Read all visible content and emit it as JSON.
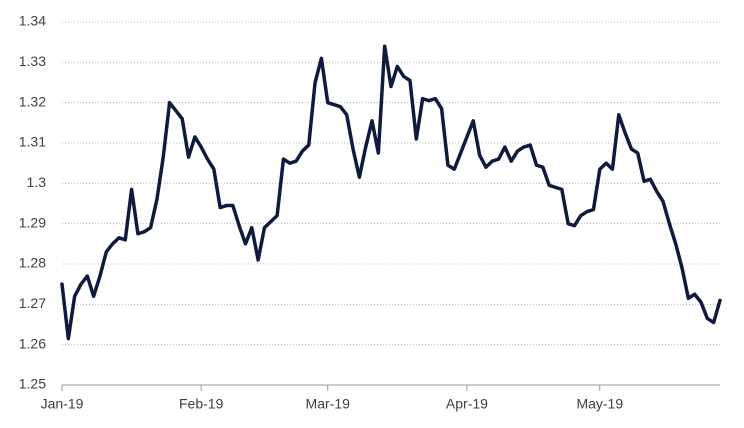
{
  "chart_data": {
    "type": "line",
    "color": "#0f1a3f",
    "grid": true,
    "categories": [
      "Jan-19",
      null,
      null,
      null,
      null,
      null,
      null,
      null,
      null,
      null,
      null,
      null,
      null,
      null,
      null,
      null,
      null,
      null,
      null,
      null,
      null,
      null,
      "Feb-19",
      null,
      null,
      null,
      null,
      null,
      null,
      null,
      null,
      null,
      null,
      null,
      null,
      null,
      null,
      null,
      null,
      null,
      null,
      null,
      "Mar-19",
      null,
      null,
      null,
      null,
      null,
      null,
      null,
      null,
      null,
      null,
      null,
      null,
      null,
      null,
      null,
      null,
      null,
      null,
      null,
      null,
      null,
      "Apr-19",
      null,
      null,
      null,
      null,
      null,
      null,
      null,
      null,
      null,
      null,
      null,
      null,
      null,
      null,
      null,
      null,
      null,
      null,
      null,
      null,
      "May-19",
      null,
      null,
      null,
      null,
      null,
      null,
      null,
      null,
      null,
      null,
      null,
      null,
      null,
      null,
      null,
      null,
      null,
      null,
      null
    ],
    "values": [
      1.275,
      1.2615,
      1.272,
      1.275,
      1.277,
      1.272,
      1.277,
      1.283,
      1.285,
      1.2865,
      1.286,
      1.2985,
      1.2875,
      1.288,
      1.289,
      1.296,
      1.3065,
      1.32,
      1.318,
      1.316,
      1.3065,
      1.3115,
      1.309,
      1.306,
      1.3035,
      1.294,
      1.2945,
      1.2945,
      1.2895,
      1.285,
      1.289,
      1.281,
      1.289,
      1.2905,
      1.292,
      1.306,
      1.305,
      1.3055,
      1.308,
      1.3095,
      1.325,
      1.331,
      1.32,
      1.3195,
      1.319,
      1.317,
      1.3085,
      1.3015,
      1.309,
      1.3155,
      1.3075,
      1.334,
      1.324,
      1.329,
      1.3265,
      1.3255,
      1.311,
      1.321,
      1.3205,
      1.321,
      1.3185,
      1.3045,
      1.3035,
      1.3075,
      1.3115,
      1.3155,
      1.307,
      1.304,
      1.3055,
      1.306,
      1.309,
      1.3055,
      1.308,
      1.309,
      1.3095,
      1.3045,
      1.304,
      1.2995,
      1.299,
      1.2985,
      1.29,
      1.2895,
      1.292,
      1.293,
      1.2935,
      1.3035,
      1.305,
      1.3035,
      1.317,
      1.3125,
      1.3085,
      1.3075,
      1.3005,
      1.301,
      1.298,
      1.2955,
      1.29,
      1.285,
      1.279,
      1.2715,
      1.2725,
      1.2705,
      1.2665,
      1.2655,
      1.271
    ],
    "ylim": [
      1.25,
      1.34
    ],
    "yticks": [
      1.25,
      1.26,
      1.27,
      1.28,
      1.29,
      1.3,
      1.31,
      1.32,
      1.33,
      1.34
    ]
  }
}
